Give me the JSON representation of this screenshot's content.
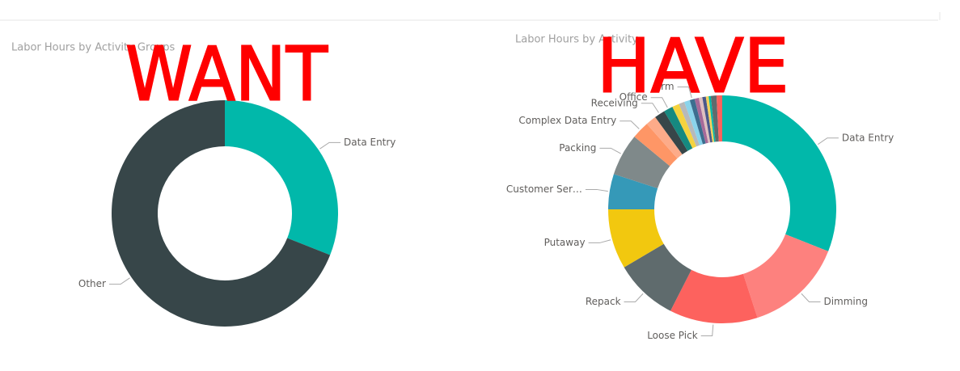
{
  "chart_data": [
    {
      "type": "donut",
      "title": "Labor Hours by Activity Groups",
      "annotation": "WANT",
      "categories": [
        "Data Entry",
        "Other"
      ],
      "values": [
        31,
        69
      ],
      "colors": [
        "#01B8AA",
        "#374649"
      ]
    },
    {
      "type": "donut",
      "title": "Labor Hours by Activity",
      "annotation": "HAVE",
      "categories": [
        "Data Entry",
        "Dimming",
        "Loose Pick",
        "Repack",
        "Putaway",
        "Customer Ser…",
        "Packing",
        "Complex Data Entry",
        null,
        "Receiving",
        "Office",
        null,
        null,
        null,
        "Crm",
        null,
        null,
        null,
        null,
        null,
        null,
        null
      ],
      "values": [
        31,
        14,
        12.5,
        9,
        8.5,
        5,
        6,
        2.5,
        1.5,
        1.5,
        1.3,
        1,
        0.8,
        0.8,
        0.7,
        0.6,
        0.5,
        0.5,
        0.4,
        0.3,
        0.8,
        0.8
      ],
      "colors": [
        "#01B8AA",
        "#FD817E",
        "#FD625E",
        "#5F6B6D",
        "#F2C80F",
        "#3599B8",
        "#7F898A",
        "#FE9666",
        "#FDAB89",
        "#374649",
        "#168980",
        "#F5D33F",
        "#B7B9BA",
        "#8AD4EB",
        "#3C6E8F",
        "#A66999",
        "#DFBFBF",
        "#4A588A",
        "#F4D25A",
        "#01B8AA",
        "#5F6B6D",
        "#FD625E"
      ]
    }
  ]
}
